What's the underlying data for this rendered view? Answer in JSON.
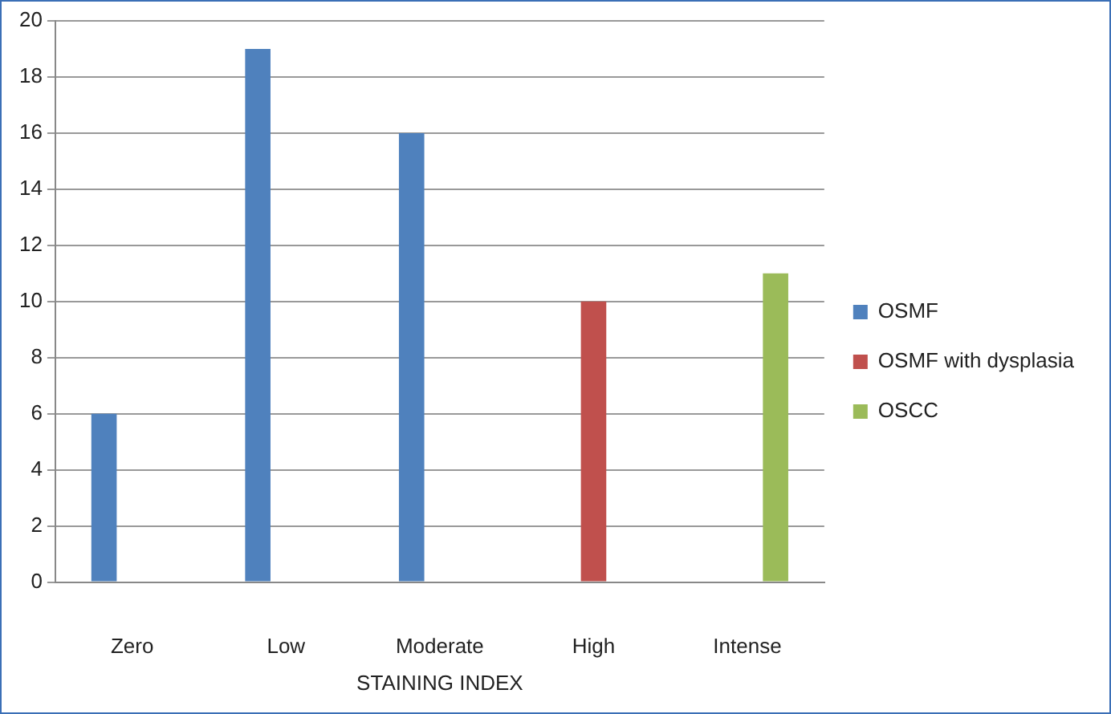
{
  "chart_data": {
    "type": "bar",
    "xlabel": "STAINING INDEX",
    "categories": [
      "Zero",
      "Low",
      "Moderate",
      "High",
      "Intense"
    ],
    "series": [
      {
        "name": "OSMF",
        "color": "#4f81bd",
        "values": [
          6,
          19,
          16,
          null,
          null
        ]
      },
      {
        "name": "OSMF with dysplasia",
        "color": "#c0504d",
        "values": [
          null,
          null,
          null,
          10,
          null
        ]
      },
      {
        "name": "OSCC",
        "color": "#9bbb59",
        "values": [
          null,
          null,
          null,
          null,
          11
        ]
      }
    ],
    "ylim": [
      0,
      20
    ],
    "yticks": [
      0,
      2,
      4,
      6,
      8,
      10,
      12,
      14,
      16,
      18,
      20
    ],
    "grid": "y",
    "legend": "right"
  }
}
